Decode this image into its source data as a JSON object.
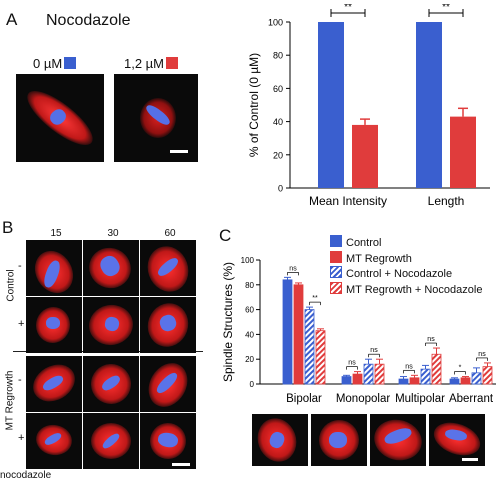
{
  "panel_a": {
    "letter": "A",
    "title": "Nocodazole",
    "conc_0": "0 µM",
    "conc_1": "1,2 µM",
    "colors": {
      "blue": "#3a5fcf",
      "red": "#e03c3c"
    }
  },
  "panel_b": {
    "letter": "B",
    "timepoints": [
      "15",
      "30",
      "60"
    ],
    "group_control": "Control",
    "group_regrowth": "MT Regrowth",
    "minus": "-",
    "plus": "+",
    "bottom_label": "nocodazole"
  },
  "panel_c": {
    "letter": "C",
    "legend": [
      "Control",
      "MT Regrowth",
      "Control + Nocodazole",
      "MT Regrowth + Nocodazole"
    ]
  },
  "chart_data": [
    {
      "type": "bar",
      "ylabel": "% of Control (0 µM)",
      "ylim": [
        0,
        100
      ],
      "yticks": [
        "0",
        "20",
        "40",
        "60",
        "80",
        "100"
      ],
      "categories": [
        "Mean Intensity",
        "Length"
      ],
      "series": [
        {
          "values": [
            100,
            100
          ],
          "color": "#3a5fcf"
        },
        {
          "values": [
            38,
            43
          ],
          "error": [
            3.5,
            5
          ],
          "color": "#e03c3c"
        }
      ],
      "significance": [
        "**",
        "**"
      ]
    },
    {
      "type": "bar",
      "ylabel": "Spindle Structures (%)",
      "ylim": [
        0,
        100
      ],
      "yticks": [
        "0",
        "20",
        "40",
        "60",
        "80",
        "100"
      ],
      "categories": [
        "Bipolar",
        "Monopolar",
        "Multipolar",
        "Aberrant"
      ],
      "series": [
        {
          "name": "Control",
          "values": [
            84,
            6,
            4,
            4
          ],
          "error": [
            2,
            1,
            2,
            1
          ]
        },
        {
          "name": "MT Regrowth",
          "values": [
            80,
            8,
            5,
            5
          ],
          "error": [
            1.5,
            2,
            2,
            1
          ]
        },
        {
          "name": "Control + Nocodazole",
          "values": [
            60,
            16,
            12,
            9
          ],
          "error": [
            2,
            4,
            3,
            4
          ]
        },
        {
          "name": "MT Regrowth + Nocodazole",
          "values": [
            43,
            16,
            24,
            14
          ],
          "error": [
            1.5,
            4,
            5,
            3
          ]
        }
      ],
      "comparisons": [
        "ns",
        "**",
        "ns",
        "ns",
        "ns",
        "ns",
        "*",
        "ns",
        "ns"
      ]
    }
  ]
}
